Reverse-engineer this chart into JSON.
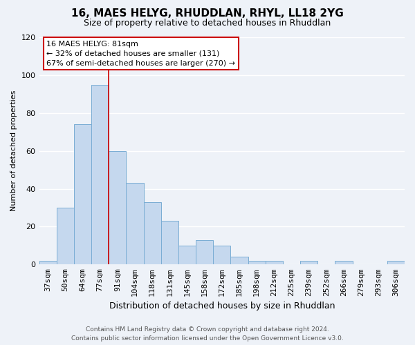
{
  "title": "16, MAES HELYG, RHUDDLAN, RHYL, LL18 2YG",
  "subtitle": "Size of property relative to detached houses in Rhuddlan",
  "xlabel": "Distribution of detached houses by size in Rhuddlan",
  "ylabel": "Number of detached properties",
  "categories": [
    "37sqm",
    "50sqm",
    "64sqm",
    "77sqm",
    "91sqm",
    "104sqm",
    "118sqm",
    "131sqm",
    "145sqm",
    "158sqm",
    "172sqm",
    "185sqm",
    "198sqm",
    "212sqm",
    "225sqm",
    "239sqm",
    "252sqm",
    "266sqm",
    "279sqm",
    "293sqm",
    "306sqm"
  ],
  "values": [
    2,
    30,
    74,
    95,
    60,
    43,
    33,
    23,
    10,
    13,
    10,
    4,
    2,
    2,
    0,
    2,
    0,
    2,
    0,
    0,
    2
  ],
  "bar_color": "#c5d8ee",
  "bar_edge_color": "#7aadd4",
  "marker_line_color": "#cc0000",
  "marker_line_index": 4,
  "ylim": [
    0,
    120
  ],
  "yticks": [
    0,
    20,
    40,
    60,
    80,
    100,
    120
  ],
  "annotation_title": "16 MAES HELYG: 81sqm",
  "annotation_line1": "← 32% of detached houses are smaller (131)",
  "annotation_line2": "67% of semi-detached houses are larger (270) →",
  "annotation_box_color": "#ffffff",
  "annotation_box_edge": "#cc0000",
  "footer1": "Contains HM Land Registry data © Crown copyright and database right 2024.",
  "footer2": "Contains public sector information licensed under the Open Government Licence v3.0.",
  "background_color": "#eef2f8",
  "grid_color": "#ffffff",
  "title_fontsize": 11,
  "subtitle_fontsize": 9,
  "ylabel_fontsize": 8,
  "xlabel_fontsize": 9,
  "tick_fontsize": 8,
  "annot_fontsize": 8
}
